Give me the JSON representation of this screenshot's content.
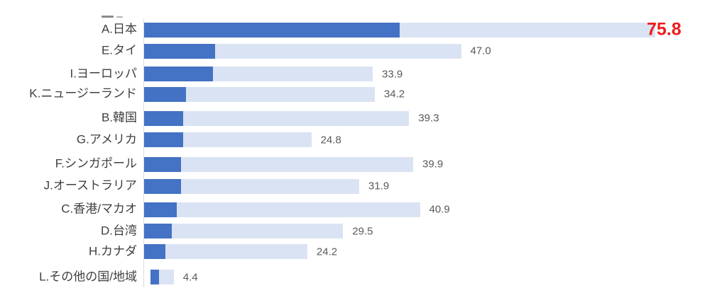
{
  "chart_data": {
    "type": "bar",
    "orientation": "horizontal",
    "title": "",
    "xlabel": "",
    "ylabel": "",
    "grid": false,
    "legend": false,
    "xlim": [
      0,
      82
    ],
    "categories": [
      "A.日本",
      "E.タイ",
      "I.ヨーロッパ",
      "K.ニュージーランド",
      "B.韓国",
      "G.アメリカ",
      "F.シンガポール",
      "J.オーストラリア",
      "C.香港/マカオ",
      "D.台湾",
      "H.カナダ",
      "L.その他の国/地域"
    ],
    "series": [
      {
        "name": "dark-blue-segment",
        "color": "#4472c4",
        "values_are_estimated_from_bar_lengths": true,
        "values": [
          37.9,
          10.5,
          10.2,
          6.2,
          5.8,
          5.8,
          5.5,
          5.5,
          4.8,
          4.1,
          3.2,
          2.2
        ]
      },
      {
        "name": "light-blue-segment-to-total",
        "color": "#dae3f3",
        "values": [
          75.8,
          47.0,
          33.9,
          34.2,
          39.3,
          24.8,
          39.9,
          31.9,
          40.9,
          29.5,
          24.2,
          4.4
        ]
      }
    ],
    "value_labels": [
      "75.8",
      "47.0",
      "33.9",
      "34.2",
      "39.3",
      "24.8",
      "39.9",
      "31.9",
      "40.9",
      "29.5",
      "24.2",
      "4.4"
    ],
    "highlight_index": 0,
    "highlighted_value": {
      "category": "A.日本",
      "label": "75.8",
      "color": "#ed1c1c"
    },
    "value_label_position": "end-of-bar",
    "category_label_align": "right"
  },
  "colors": {
    "bar_dark": "#4472c4",
    "bar_light": "#dae3f3",
    "value_text": "#595959",
    "category_text": "#3f3f3f",
    "highlight_text": "#ed1c1c",
    "axis_line": "#dcdcdc",
    "background": "#ffffff"
  }
}
